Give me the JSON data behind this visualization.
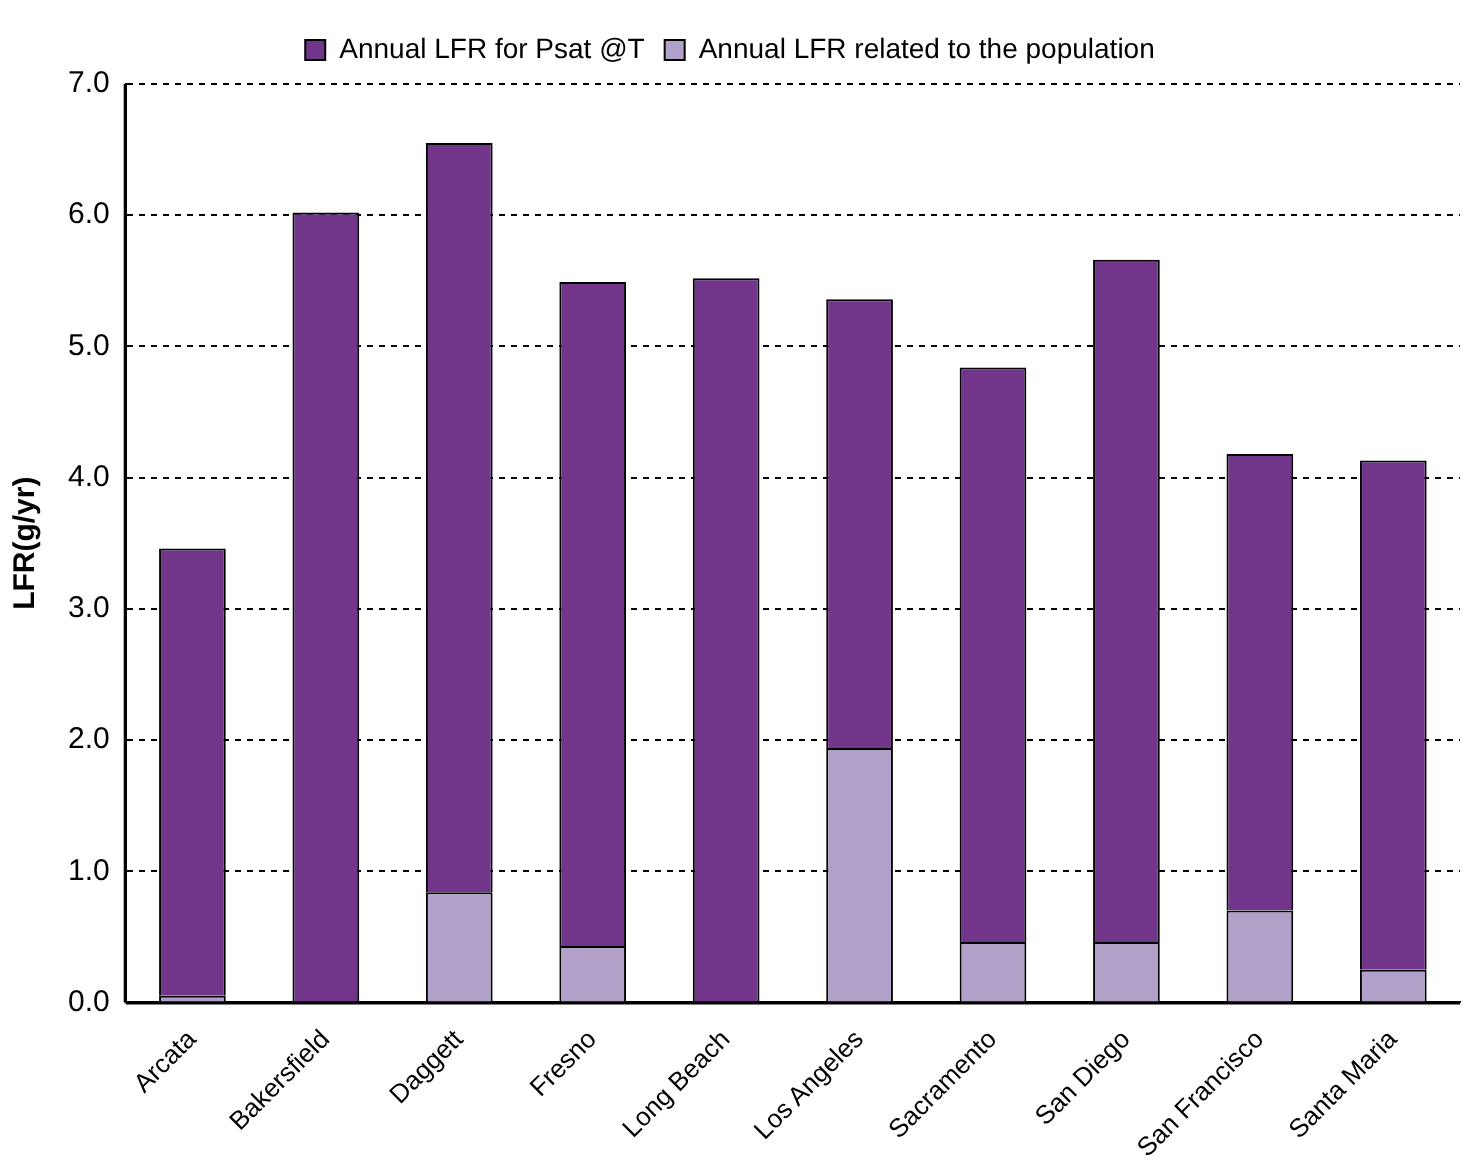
{
  "chart_data": {
    "type": "bar",
    "ylabel": "LFR(g/yr)",
    "stacked": true,
    "categories": [
      "Arcata",
      "Bakersfield",
      "Daggett",
      "Fresno",
      "Long Beach",
      "Los Angeles",
      "Sacramento",
      "San Diego",
      "San Francisco",
      "Santa Maria"
    ],
    "series": [
      {
        "name": "Annual LFR related to the population",
        "color": "#b1a0c7",
        "values": [
          0.05,
          0,
          0.84,
          0.43,
          0,
          1.94,
          0.46,
          0.46,
          0.7,
          0.25
        ]
      },
      {
        "name": "Annual LFR for Psat @T",
        "color": "#71368a",
        "values": [
          3.41,
          6.02,
          5.71,
          5.06,
          5.52,
          3.42,
          4.38,
          5.2,
          3.48,
          3.88
        ]
      }
    ],
    "ylim": [
      0,
      7
    ],
    "yticks": [
      {
        "value": 0,
        "label": "0.0"
      },
      {
        "value": 1,
        "label": "1.0"
      },
      {
        "value": 2,
        "label": "2.0"
      },
      {
        "value": 3,
        "label": "3.0"
      },
      {
        "value": 4,
        "label": "4.0"
      },
      {
        "value": 5,
        "label": "5.0"
      },
      {
        "value": 6,
        "label": "6.0"
      },
      {
        "value": 7,
        "label": "7.0"
      }
    ],
    "grid": "y",
    "legend": "top",
    "line_style": "dashed"
  }
}
